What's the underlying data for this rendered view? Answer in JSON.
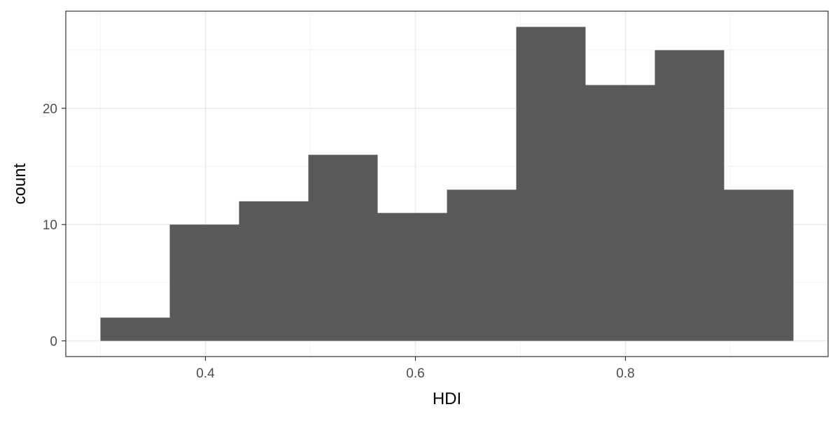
{
  "chart_data": {
    "type": "bar",
    "subtype": "histogram",
    "xlabel": "HDI",
    "ylabel": "count",
    "bins": [
      {
        "x0": 0.3,
        "x1": 0.366,
        "count": 2
      },
      {
        "x0": 0.366,
        "x1": 0.432,
        "count": 10
      },
      {
        "x0": 0.432,
        "x1": 0.498,
        "count": 12
      },
      {
        "x0": 0.498,
        "x1": 0.564,
        "count": 16
      },
      {
        "x0": 0.564,
        "x1": 0.63,
        "count": 11
      },
      {
        "x0": 0.63,
        "x1": 0.696,
        "count": 13
      },
      {
        "x0": 0.696,
        "x1": 0.762,
        "count": 27
      },
      {
        "x0": 0.762,
        "x1": 0.828,
        "count": 22
      },
      {
        "x0": 0.828,
        "x1": 0.894,
        "count": 25
      },
      {
        "x0": 0.894,
        "x1": 0.96,
        "count": 13
      }
    ],
    "xlim": [
      0.267,
      0.993
    ],
    "ylim": [
      -1.35,
      28.35
    ],
    "x_ticks": [
      {
        "value": 0.4,
        "label": "0.4"
      },
      {
        "value": 0.6,
        "label": "0.6"
      },
      {
        "value": 0.8,
        "label": "0.8"
      }
    ],
    "x_minor_ticks": [
      0.3,
      0.5,
      0.7,
      0.9
    ],
    "y_ticks": [
      {
        "value": 0,
        "label": "0"
      },
      {
        "value": 10,
        "label": "10"
      },
      {
        "value": 20,
        "label": "20"
      }
    ],
    "y_minor_ticks": [
      5,
      15,
      25
    ],
    "grid": true,
    "legend": "none",
    "colors": {
      "bar_fill": "#595959",
      "panel_background": "#ffffff",
      "panel_border": "#333333",
      "grid_major": "#ebebeb",
      "grid_minor": "#f3f3f3"
    }
  }
}
